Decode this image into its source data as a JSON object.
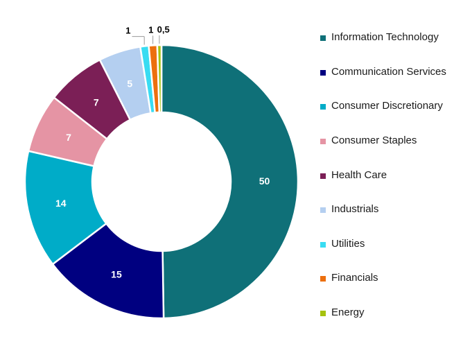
{
  "chart_data": {
    "type": "pie",
    "donut": true,
    "title": "",
    "slices": [
      {
        "label": "Information Technology",
        "value": 50,
        "display": "50",
        "color": "#0f7078"
      },
      {
        "label": "Communication Services",
        "value": 15,
        "display": "15",
        "color": "#000080"
      },
      {
        "label": "Consumer Discretionary",
        "value": 14,
        "display": "14",
        "color": "#00acc8"
      },
      {
        "label": "Consumer Staples",
        "value": 7,
        "display": "7",
        "color": "#e594a4"
      },
      {
        "label": "Health Care",
        "value": 7,
        "display": "7",
        "color": "#7b1f56"
      },
      {
        "label": "Industrials",
        "value": 5,
        "display": "5",
        "color": "#b4cff0"
      },
      {
        "label": "Utilities",
        "value": 1,
        "display": "1",
        "color": "#38dcf2"
      },
      {
        "label": "Financials",
        "value": 1,
        "display": "1",
        "color": "#ec6f0e"
      },
      {
        "label": "Energy",
        "value": 0.5,
        "display": "0,5",
        "color": "#a6c20e"
      }
    ],
    "legend_position": "right"
  }
}
